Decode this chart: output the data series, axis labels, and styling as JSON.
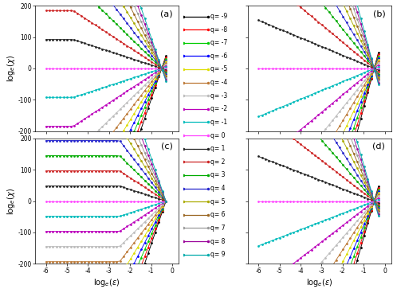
{
  "q_values": [
    -9,
    -8,
    -7,
    -6,
    -5,
    -4,
    -3,
    -2,
    -1,
    0,
    1,
    2,
    3,
    4,
    5,
    6,
    7,
    8,
    9
  ],
  "colors_list": [
    "#000000",
    "#ff0000",
    "#00bb00",
    "#0000ff",
    "#dddd00",
    "#bb8833",
    "#bbbbbb",
    "#aa00aa",
    "#00bbbb",
    "#ff44ff",
    "#444444",
    "#ff6666",
    "#44dd44",
    "#4444ff",
    "#aaaa00",
    "#cc8844",
    "#999999",
    "#cc44cc",
    "#00cccc"
  ],
  "xlim": [
    -6.5,
    0.3
  ],
  "ylim": [
    -200,
    200
  ],
  "xticks": [
    -6,
    -5,
    -4,
    -3,
    -2,
    -1,
    0
  ],
  "yticks": [
    -200,
    -100,
    0,
    100,
    200
  ],
  "panel_labels": [
    "(a)",
    "(b)",
    "(c)",
    "(d)"
  ],
  "legend_q_labels": [
    "q= -9",
    "q= -8",
    "q= -7",
    "q= -6",
    "q= -5",
    "q= -4",
    "q= -3",
    "q= -2",
    "q= -1",
    "q= 0",
    "q= 1",
    "q= 2",
    "q= 3",
    "q= 4",
    "q= 5",
    "q= 6",
    "q= 7",
    "q= 8",
    "q= 9"
  ],
  "panel_a": {
    "plateau_x": -4.7,
    "slope_factor": 22.0,
    "converge_x": -0.5
  },
  "panel_b": {
    "slope_factor": 28.0,
    "converge_x": -0.5
  },
  "panel_c": {
    "plateau_x": -2.5,
    "slope_factor": 22.0,
    "converge_x": -0.3
  },
  "panel_d": {
    "slope_factor": 26.0,
    "converge_x": -0.5
  }
}
